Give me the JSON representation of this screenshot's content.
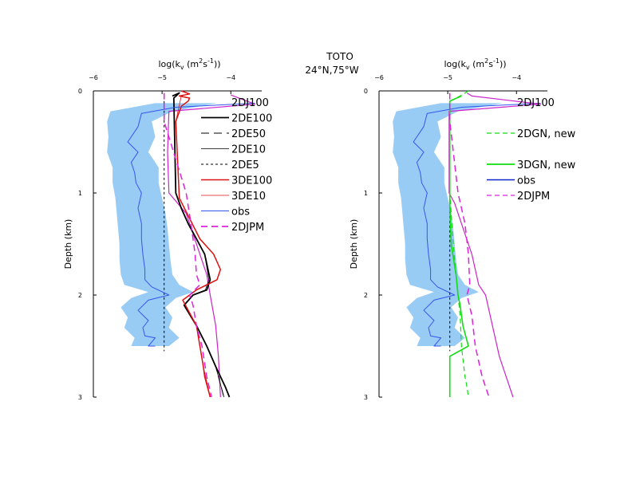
{
  "figure": {
    "title_line1": "TOTO",
    "title_line2": "24°N,75°W"
  },
  "chart_data": [
    {
      "type": "line",
      "panel": "left",
      "xlabel": "log(k_v (m^2 s^-1))",
      "xlabel_parts": {
        "pre": "log(k",
        "sub": "v",
        "mid": " (m",
        "sup1": "2",
        "mid2": "s",
        "sup2": "-1",
        "post": "))"
      },
      "ylabel": "Depth (km)",
      "xlim": [
        -6,
        -3.55
      ],
      "ylim": [
        0,
        3
      ],
      "x_ticks": [
        -6,
        -5,
        -4
      ],
      "x_tick_labels": [
        "−6",
        "−5",
        "−4"
      ],
      "y_ticks": [
        0,
        1,
        2,
        3
      ],
      "y_tick_labels": [
        "0",
        "1",
        "2",
        "3"
      ],
      "obs_band": {
        "depth": [
          0.12,
          0.2,
          0.3,
          0.45,
          0.6,
          0.75,
          0.9,
          1.05,
          1.2,
          1.35,
          1.5,
          1.65,
          1.8,
          1.9,
          1.97,
          2.03,
          2.12,
          2.22,
          2.32,
          2.42,
          2.5
        ],
        "lo": [
          -5.1,
          -5.75,
          -5.8,
          -5.78,
          -5.8,
          -5.72,
          -5.72,
          -5.68,
          -5.66,
          -5.64,
          -5.62,
          -5.62,
          -5.6,
          -5.55,
          -5.2,
          -5.45,
          -5.6,
          -5.5,
          -5.55,
          -5.4,
          -5.45
        ],
        "hi": [
          -4.2,
          -4.85,
          -5.15,
          -5.1,
          -5.2,
          -5.05,
          -5.05,
          -5.0,
          -4.95,
          -4.92,
          -4.9,
          -4.88,
          -4.85,
          -4.75,
          -4.55,
          -4.8,
          -4.95,
          -4.85,
          -4.9,
          -4.75,
          -4.9
        ]
      },
      "series": [
        {
          "name": "2DJ100",
          "color": "#cc22cc",
          "width": 1.2,
          "dash": "",
          "x": [
            -4.0,
            -3.65,
            -4.9,
            -4.92,
            -4.9,
            -4.65,
            -4.55,
            -4.45,
            -4.35,
            -4.3,
            -4.22,
            -4.18,
            -4.15
          ],
          "depth": [
            0.04,
            0.13,
            0.2,
            0.6,
            1.0,
            1.2,
            1.4,
            1.6,
            1.8,
            2.0,
            2.3,
            2.6,
            3.0
          ]
        },
        {
          "name": "2DE100",
          "color": "#000000",
          "width": 1.8,
          "dash": "",
          "x": [
            -4.85,
            -4.75,
            -4.83,
            -4.8,
            -4.72,
            -4.62,
            -4.5,
            -4.38,
            -4.3,
            -4.35,
            -4.55,
            -4.68,
            -4.5,
            -4.35,
            -4.22,
            -4.08,
            -4.02
          ],
          "depth": [
            0.05,
            0.02,
            0.07,
            1.0,
            1.15,
            1.3,
            1.45,
            1.6,
            1.85,
            1.95,
            2.0,
            2.1,
            2.3,
            2.5,
            2.7,
            2.9,
            3.0
          ]
        },
        {
          "name": "2DE50",
          "color": "#000000",
          "width": 1.0,
          "dash": "10,6",
          "x": [
            -4.83,
            -4.8,
            -4.72,
            -4.62,
            -4.5,
            -4.38,
            -4.3,
            -4.35,
            -4.55,
            -4.68,
            -4.5,
            -4.35,
            -4.22,
            -4.1
          ],
          "depth": [
            0.07,
            1.0,
            1.15,
            1.3,
            1.45,
            1.6,
            1.85,
            1.95,
            2.0,
            2.1,
            2.3,
            2.5,
            2.7,
            3.0
          ]
        },
        {
          "name": "2DE10",
          "color": "#000000",
          "width": 0.8,
          "dash": "",
          "x": [
            -4.83,
            -4.8,
            -4.72,
            -4.62,
            -4.5,
            -4.38,
            -4.32,
            -4.37,
            -4.55,
            -4.68,
            -4.5,
            -4.35,
            -4.22,
            -4.1
          ],
          "depth": [
            0.07,
            1.0,
            1.15,
            1.3,
            1.45,
            1.6,
            1.85,
            1.95,
            2.0,
            2.1,
            2.3,
            2.5,
            2.7,
            3.0
          ]
        },
        {
          "name": "2DE5",
          "color": "#000000",
          "width": 1.0,
          "dash": "3,3",
          "x": [
            -4.97,
            -4.97,
            -4.97,
            -4.97
          ],
          "depth": [
            0.1,
            1.0,
            2.0,
            2.55
          ]
        },
        {
          "name": "3DE100",
          "color": "#dd1111",
          "width": 1.5,
          "dash": "",
          "x": [
            -4.72,
            -4.6,
            -4.75,
            -4.6,
            -4.62,
            -4.72,
            -4.8,
            -4.75,
            -4.6,
            -4.45,
            -4.25,
            -4.15,
            -4.2,
            -4.5,
            -4.7,
            -4.5,
            -4.45,
            -4.4,
            -4.38,
            -4.3
          ],
          "depth": [
            0.0,
            0.03,
            0.05,
            0.07,
            0.1,
            0.15,
            0.3,
            1.05,
            1.25,
            1.45,
            1.6,
            1.75,
            1.85,
            1.95,
            2.05,
            2.3,
            2.5,
            2.7,
            2.8,
            3.0
          ]
        },
        {
          "name": "3DE10",
          "color": "#dd1111",
          "width": 0.8,
          "dash": "",
          "x": [
            -4.72,
            -4.8,
            -4.75,
            -4.6,
            -4.45,
            -4.25,
            -4.15,
            -4.2,
            -4.5,
            -4.7,
            -4.5,
            -4.45,
            -4.4,
            -4.3
          ],
          "depth": [
            0.05,
            0.3,
            1.05,
            1.25,
            1.45,
            1.6,
            1.75,
            1.85,
            1.95,
            2.05,
            2.3,
            2.5,
            2.7,
            3.0
          ]
        },
        {
          "name": "obs",
          "color": "#3355ee",
          "width": 1.0,
          "dash": "",
          "x": [
            -3.65,
            -4.8,
            -5.3,
            -5.35,
            -5.5,
            -5.35,
            -5.45,
            -5.4,
            -5.38,
            -5.3,
            -5.35,
            -5.3,
            -5.3,
            -5.28,
            -5.25,
            -5.25,
            -5.15,
            -4.9,
            -5.2,
            -5.35,
            -5.2,
            -5.28,
            -5.25,
            -5.1,
            -5.2,
            -5.1
          ],
          "depth": [
            0.12,
            0.16,
            0.22,
            0.35,
            0.5,
            0.6,
            0.7,
            0.8,
            0.9,
            1.0,
            1.15,
            1.3,
            1.45,
            1.6,
            1.75,
            1.85,
            1.92,
            2.0,
            2.05,
            2.15,
            2.25,
            2.32,
            2.4,
            2.42,
            2.5,
            2.5
          ]
        },
        {
          "name": "2DJPM",
          "color": "#dd22dd",
          "width": 1.5,
          "dash": "8,5",
          "x": [
            -4.97,
            -4.97,
            -4.65,
            -4.58,
            -4.52,
            -4.5,
            -4.45,
            -4.6,
            -4.55,
            -4.5,
            -4.42,
            -4.35,
            -4.28
          ],
          "depth": [
            0.02,
            0.3,
            1.0,
            1.3,
            1.6,
            1.8,
            1.9,
            2.0,
            2.1,
            2.3,
            2.5,
            2.8,
            3.0
          ]
        }
      ],
      "legend": [
        {
          "label": "2DJ100",
          "color": "",
          "dash": "",
          "width": 0
        },
        {
          "label": "2DE100",
          "color": "#000000",
          "dash": "",
          "width": 1.8
        },
        {
          "label": "2DE50",
          "color": "#000000",
          "dash": "10,6",
          "width": 1.0
        },
        {
          "label": "2DE10",
          "color": "#000000",
          "dash": "",
          "width": 0.8
        },
        {
          "label": "2DE5",
          "color": "#000000",
          "dash": "3,3",
          "width": 1.0
        },
        {
          "label": "3DE100",
          "color": "#dd1111",
          "dash": "",
          "width": 1.5
        },
        {
          "label": "3DE10",
          "color": "#dd1111",
          "dash": "",
          "width": 0.8
        },
        {
          "label": "obs",
          "color": "#3355ee",
          "dash": "",
          "width": 1.0
        },
        {
          "label": "2DJPM",
          "color": "#dd22dd",
          "dash": "8,5",
          "width": 1.8
        }
      ]
    },
    {
      "type": "line",
      "panel": "right",
      "xlabel": "log(k_v (m^2 s^-1))",
      "xlabel_parts": {
        "pre": "log(k",
        "sub": "v",
        "mid": " (m",
        "sup1": "2",
        "mid2": "s",
        "sup2": "-1",
        "post": "))"
      },
      "ylabel": "Depth (km)",
      "xlim": [
        -6,
        -3.55
      ],
      "ylim": [
        0,
        3
      ],
      "x_ticks": [
        -6,
        -5,
        -4
      ],
      "x_tick_labels": [
        "−6",
        "−5",
        "−4"
      ],
      "y_ticks": [
        0,
        1,
        2,
        3
      ],
      "y_tick_labels": [
        "0",
        "1",
        "2",
        "3"
      ],
      "obs_band": {
        "depth": [
          0.12,
          0.2,
          0.3,
          0.45,
          0.6,
          0.75,
          0.9,
          1.05,
          1.2,
          1.35,
          1.5,
          1.65,
          1.8,
          1.9,
          1.97,
          2.03,
          2.12,
          2.22,
          2.32,
          2.42,
          2.5
        ],
        "lo": [
          -5.1,
          -5.75,
          -5.8,
          -5.78,
          -5.8,
          -5.72,
          -5.72,
          -5.68,
          -5.66,
          -5.64,
          -5.62,
          -5.62,
          -5.6,
          -5.55,
          -5.2,
          -5.45,
          -5.6,
          -5.5,
          -5.55,
          -5.4,
          -5.45
        ],
        "hi": [
          -4.2,
          -4.85,
          -5.15,
          -5.1,
          -5.2,
          -5.05,
          -5.05,
          -5.0,
          -4.95,
          -4.92,
          -4.9,
          -4.88,
          -4.85,
          -4.75,
          -4.55,
          -4.8,
          -4.95,
          -4.85,
          -4.9,
          -4.75,
          -4.9
        ]
      },
      "series": [
        {
          "name": "obs",
          "color": "#3355ee",
          "width": 1.0,
          "dash": "",
          "x": [
            -3.65,
            -4.8,
            -5.3,
            -5.35,
            -5.5,
            -5.35,
            -5.45,
            -5.4,
            -5.38,
            -5.3,
            -5.35,
            -5.3,
            -5.3,
            -5.28,
            -5.25,
            -5.25,
            -5.15,
            -4.9,
            -5.2,
            -5.35,
            -5.2,
            -5.28,
            -5.25,
            -5.1,
            -5.2,
            -5.1
          ],
          "depth": [
            0.12,
            0.16,
            0.22,
            0.35,
            0.5,
            0.6,
            0.7,
            0.8,
            0.9,
            1.0,
            1.15,
            1.3,
            1.45,
            1.6,
            1.75,
            1.85,
            1.92,
            2.0,
            2.05,
            2.15,
            2.25,
            2.32,
            2.4,
            2.42,
            2.5,
            2.5
          ]
        },
        {
          "name": "2DJ100",
          "color": "#cc22cc",
          "width": 1.2,
          "dash": "",
          "x": [
            -4.72,
            -4.65,
            -3.65,
            -4.98,
            -4.98,
            -4.9,
            -4.8,
            -4.65,
            -4.55,
            -4.45,
            -4.35,
            -4.25,
            -4.05
          ],
          "depth": [
            0.02,
            0.05,
            0.13,
            0.2,
            1.0,
            1.1,
            1.3,
            1.6,
            1.9,
            2.0,
            2.3,
            2.6,
            3.0
          ]
        },
        {
          "name": "2DE5",
          "color": "#000000",
          "width": 1.0,
          "dash": "3,3",
          "x": [
            -4.97,
            -4.97,
            -4.97
          ],
          "depth": [
            0.1,
            1.5,
            2.55
          ]
        },
        {
          "name": "2DGN, new",
          "color": "#11dd11",
          "width": 1.2,
          "dash": "6,4",
          "x": [
            -4.7,
            -4.82,
            -4.97,
            -4.97,
            -4.92,
            -4.85,
            -4.82,
            -4.8,
            -4.75,
            -4.72,
            -4.7
          ],
          "depth": [
            0.0,
            0.05,
            0.1,
            1.0,
            1.5,
            2.0,
            2.2,
            2.5,
            2.8,
            2.9,
            3.0
          ]
        },
        {
          "name": "3DGN, new",
          "color": "#11dd11",
          "width": 1.6,
          "dash": "",
          "x": [
            -4.8,
            -4.97,
            -4.97,
            -4.95,
            -4.88,
            -4.85,
            -4.82,
            -4.78,
            -4.7,
            -4.97,
            -4.97
          ],
          "depth": [
            0.05,
            0.1,
            1.1,
            1.5,
            1.8,
            2.0,
            2.1,
            2.3,
            2.5,
            2.6,
            3.0
          ]
        },
        {
          "name": "2DJPM",
          "color": "#dd22dd",
          "width": 1.5,
          "dash": "8,5",
          "x": [
            -4.97,
            -4.97,
            -4.85,
            -4.75,
            -4.7,
            -4.68,
            -4.72,
            -4.65,
            -4.6,
            -4.5,
            -4.4
          ],
          "depth": [
            0.02,
            0.3,
            1.0,
            1.3,
            1.6,
            1.9,
            2.0,
            2.2,
            2.5,
            2.8,
            3.0
          ]
        }
      ],
      "legend": [
        {
          "label": "2DJ100",
          "color": "",
          "dash": "",
          "width": 0
        },
        {
          "label": "",
          "color": "",
          "dash": "",
          "width": 0
        },
        {
          "label": "2DGN, new",
          "color": "#11dd11",
          "dash": "6,4",
          "width": 1.2
        },
        {
          "label": "",
          "color": "",
          "dash": "",
          "width": 0
        },
        {
          "label": "3DGN, new",
          "color": "#11dd11",
          "dash": "",
          "width": 1.8
        },
        {
          "label": "obs",
          "color": "#1122cc",
          "dash": "",
          "width": 1.6
        },
        {
          "label": "2DJPM",
          "color": "#dd22dd",
          "dash": "6,4",
          "width": 1.2
        }
      ]
    }
  ],
  "colors": {
    "obs_band": "#99ccf5",
    "axis": "#000000"
  }
}
